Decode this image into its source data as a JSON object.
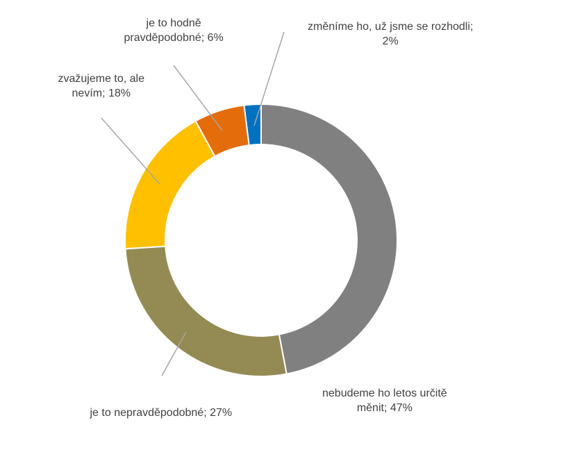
{
  "chart_data": {
    "type": "pie",
    "subtype": "donut",
    "title": "",
    "legend": "none",
    "slices": [
      {
        "category": "nebudeme ho letos určitě měnit",
        "value": 47,
        "label_lines": [
          "nebudeme ho letos určitě",
          "měnit; 47%"
        ],
        "color": "#808080"
      },
      {
        "category": "je to nepravděpodobné",
        "value": 27,
        "label_lines": [
          "je to nepravděpodobné; 27%"
        ],
        "color": "#948A54"
      },
      {
        "category": "zvažujeme to, ale nevím",
        "value": 18,
        "label_lines": [
          "zvažujeme to, ale",
          "nevím; 18%"
        ],
        "color": "#FFC000"
      },
      {
        "category": "je to hodně pravděpodobné",
        "value": 6,
        "label_lines": [
          "je to hodně",
          "pravděpodobné; 6%"
        ],
        "color": "#E46C0A"
      },
      {
        "category": "změníme ho, už jsme se rozhodli",
        "value": 2,
        "label_lines": [
          "změníme ho, už jsme se rozhodli;",
          "2%"
        ],
        "color": "#0070C0"
      }
    ],
    "leader_line_color": "#A6A6A6",
    "label_text_color": "#404040",
    "slice_border_color": "#FFFFFF"
  }
}
